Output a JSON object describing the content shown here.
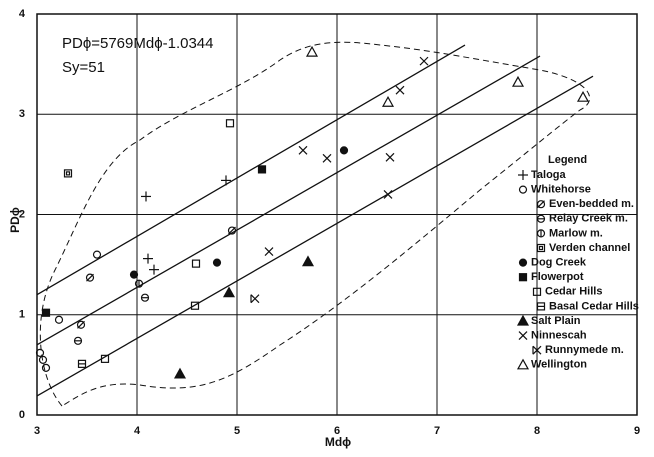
{
  "chart_data": {
    "type": "scatter",
    "annotations": [
      "PDϕ=5769Mdϕ-1.0344",
      "Sy=51"
    ],
    "x_label": "Mdϕ",
    "y_label": "PDϕ",
    "xlim": [
      3,
      9
    ],
    "ylim": [
      0,
      4
    ],
    "xticks": [
      3,
      4,
      5,
      6,
      7,
      8,
      9
    ],
    "yticks": [
      0,
      1,
      2,
      3,
      4
    ],
    "grid": true,
    "legend_title": "Legend",
    "legend_position": "right",
    "lines": [
      {
        "x": [
          3,
          7.28
        ],
        "values": [
          1.2,
          3.69
        ]
      },
      {
        "x": [
          3,
          8.03
        ],
        "values": [
          0.7,
          3.58
        ]
      },
      {
        "x": [
          3,
          8.56
        ],
        "values": [
          0.19,
          3.38
        ]
      }
    ],
    "series": [
      {
        "name": "Taloga",
        "marker": "plus",
        "color": "#111",
        "x": [
          4.09,
          4.11,
          4.17,
          4.89
        ],
        "values": [
          2.18,
          1.56,
          1.45,
          2.34
        ]
      },
      {
        "name": "Whitehorse",
        "marker": "circle-open",
        "color": "#111",
        "x": [
          3.6,
          3.03,
          3.06,
          3.09,
          3.22
        ],
        "values": [
          1.6,
          0.62,
          0.55,
          0.47,
          0.95
        ]
      },
      {
        "name": "Even-bedded m.",
        "marker": "circle-slash",
        "color": "#111",
        "x": [
          3.53,
          4.95,
          3.44
        ],
        "values": [
          1.37,
          1.84,
          0.9
        ]
      },
      {
        "name": "Relay Creek m.",
        "marker": "circle-hbar",
        "color": "#111",
        "x": [
          4.08,
          3.41
        ],
        "values": [
          1.17,
          0.74
        ]
      },
      {
        "name": "Marlow m.",
        "marker": "circle-vbar",
        "color": "#111",
        "x": [
          4.02
        ],
        "values": [
          1.31
        ]
      },
      {
        "name": "Verden channel",
        "marker": "square-double",
        "color": "#111",
        "x": [
          3.31
        ],
        "values": [
          2.41
        ]
      },
      {
        "name": "Dog Creek",
        "marker": "circle-filled",
        "color": "#111",
        "x": [
          3.97,
          4.8,
          6.07
        ],
        "values": [
          1.4,
          1.52,
          2.64
        ]
      },
      {
        "name": "Flowerpot",
        "marker": "square-filled",
        "color": "#111",
        "x": [
          3.09,
          5.25
        ],
        "values": [
          1.02,
          2.45
        ]
      },
      {
        "name": "Cedar Hills",
        "marker": "square-open",
        "color": "#111",
        "x": [
          4.93,
          4.59,
          4.58,
          3.68
        ],
        "values": [
          2.91,
          1.51,
          1.09,
          0.56
        ]
      },
      {
        "name": "Basal Cedar Hills",
        "marker": "square-hbar",
        "color": "#111",
        "x": [
          3.45
        ],
        "values": [
          0.51
        ]
      },
      {
        "name": "Salt Plain",
        "marker": "triangle-filled",
        "color": "#111",
        "x": [
          4.43,
          4.92,
          5.71
        ],
        "values": [
          0.41,
          1.22,
          1.53
        ]
      },
      {
        "name": "Ninnescah",
        "marker": "cross",
        "color": "#111",
        "x": [
          5.66,
          5.9,
          6.53,
          5.32,
          6.51,
          6.87,
          6.63
        ],
        "values": [
          2.64,
          2.56,
          2.57,
          1.63,
          2.2,
          3.53,
          3.24
        ]
      },
      {
        "name": "Runnymede m.",
        "marker": "cross-bar",
        "color": "#111",
        "x": [
          5.18
        ],
        "values": [
          1.16
        ]
      },
      {
        "name": "Wellington",
        "marker": "triangle-open",
        "color": "#111",
        "x": [
          5.75,
          6.51,
          7.81,
          8.46
        ],
        "values": [
          3.62,
          3.12,
          3.32,
          3.17
        ]
      }
    ]
  }
}
